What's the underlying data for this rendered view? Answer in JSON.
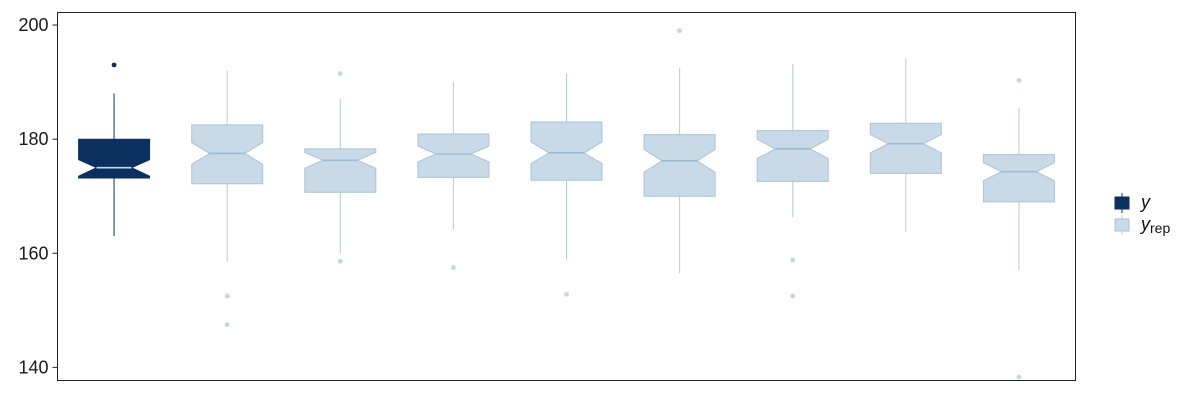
{
  "chart_data": {
    "type": "boxplot",
    "notched": true,
    "ylim": [
      137.7,
      202.2
    ],
    "y_ticks": [
      140,
      160,
      180,
      200
    ],
    "grid": false,
    "legend": {
      "placement": "right",
      "entries": [
        {
          "key": "y",
          "label": "y",
          "subscript": "",
          "color": "#0b3060"
        },
        {
          "key": "y_rep",
          "label": "y",
          "subscript": "rep",
          "color": "#c8d9e7"
        }
      ]
    },
    "boxes": [
      {
        "series": "y",
        "whisker_low": 163.0,
        "q1": 173.2,
        "median": 175.0,
        "q3": 180.0,
        "whisker_high": 188.0,
        "notch_low": 173.5,
        "notch_high": 176.4,
        "outliers": [
          193.0
        ]
      },
      {
        "series": "y_rep",
        "whisker_low": 158.5,
        "q1": 172.2,
        "median": 177.5,
        "q3": 182.5,
        "whisker_high": 192.0,
        "notch_low": 175.6,
        "notch_high": 179.4,
        "outliers": [
          152.5,
          147.5
        ]
      },
      {
        "series": "y_rep",
        "whisker_low": 160.0,
        "q1": 170.7,
        "median": 176.3,
        "q3": 178.3,
        "whisker_high": 187.0,
        "notch_low": 174.9,
        "notch_high": 177.7,
        "outliers": [
          191.5,
          158.6
        ]
      },
      {
        "series": "y_rep",
        "whisker_low": 164.2,
        "q1": 173.3,
        "median": 177.4,
        "q3": 180.9,
        "whisker_high": 190.0,
        "notch_low": 176.0,
        "notch_high": 178.8,
        "outliers": [
          157.5
        ]
      },
      {
        "series": "y_rep",
        "whisker_low": 158.9,
        "q1": 172.8,
        "median": 177.6,
        "q3": 183.0,
        "whisker_high": 191.5,
        "notch_low": 175.7,
        "notch_high": 179.5,
        "outliers": [
          152.8
        ]
      },
      {
        "series": "y_rep",
        "whisker_low": 156.5,
        "q1": 170.0,
        "median": 176.2,
        "q3": 180.8,
        "whisker_high": 192.5,
        "notch_low": 174.2,
        "notch_high": 178.2,
        "outliers": [
          199.0
        ]
      },
      {
        "series": "y_rep",
        "whisker_low": 166.3,
        "q1": 172.6,
        "median": 178.3,
        "q3": 181.5,
        "whisker_high": 193.2,
        "notch_low": 176.6,
        "notch_high": 180.0,
        "outliers": [
          158.8,
          152.5
        ]
      },
      {
        "series": "y_rep",
        "whisker_low": 163.8,
        "q1": 174.0,
        "median": 179.2,
        "q3": 182.8,
        "whisker_high": 194.2,
        "notch_low": 177.6,
        "notch_high": 180.8,
        "outliers": []
      },
      {
        "series": "y_rep",
        "whisker_low": 157.0,
        "q1": 169.0,
        "median": 174.3,
        "q3": 177.3,
        "whisker_high": 185.5,
        "notch_low": 172.7,
        "notch_high": 175.9,
        "outliers": [
          190.3,
          138.3
        ]
      }
    ]
  }
}
